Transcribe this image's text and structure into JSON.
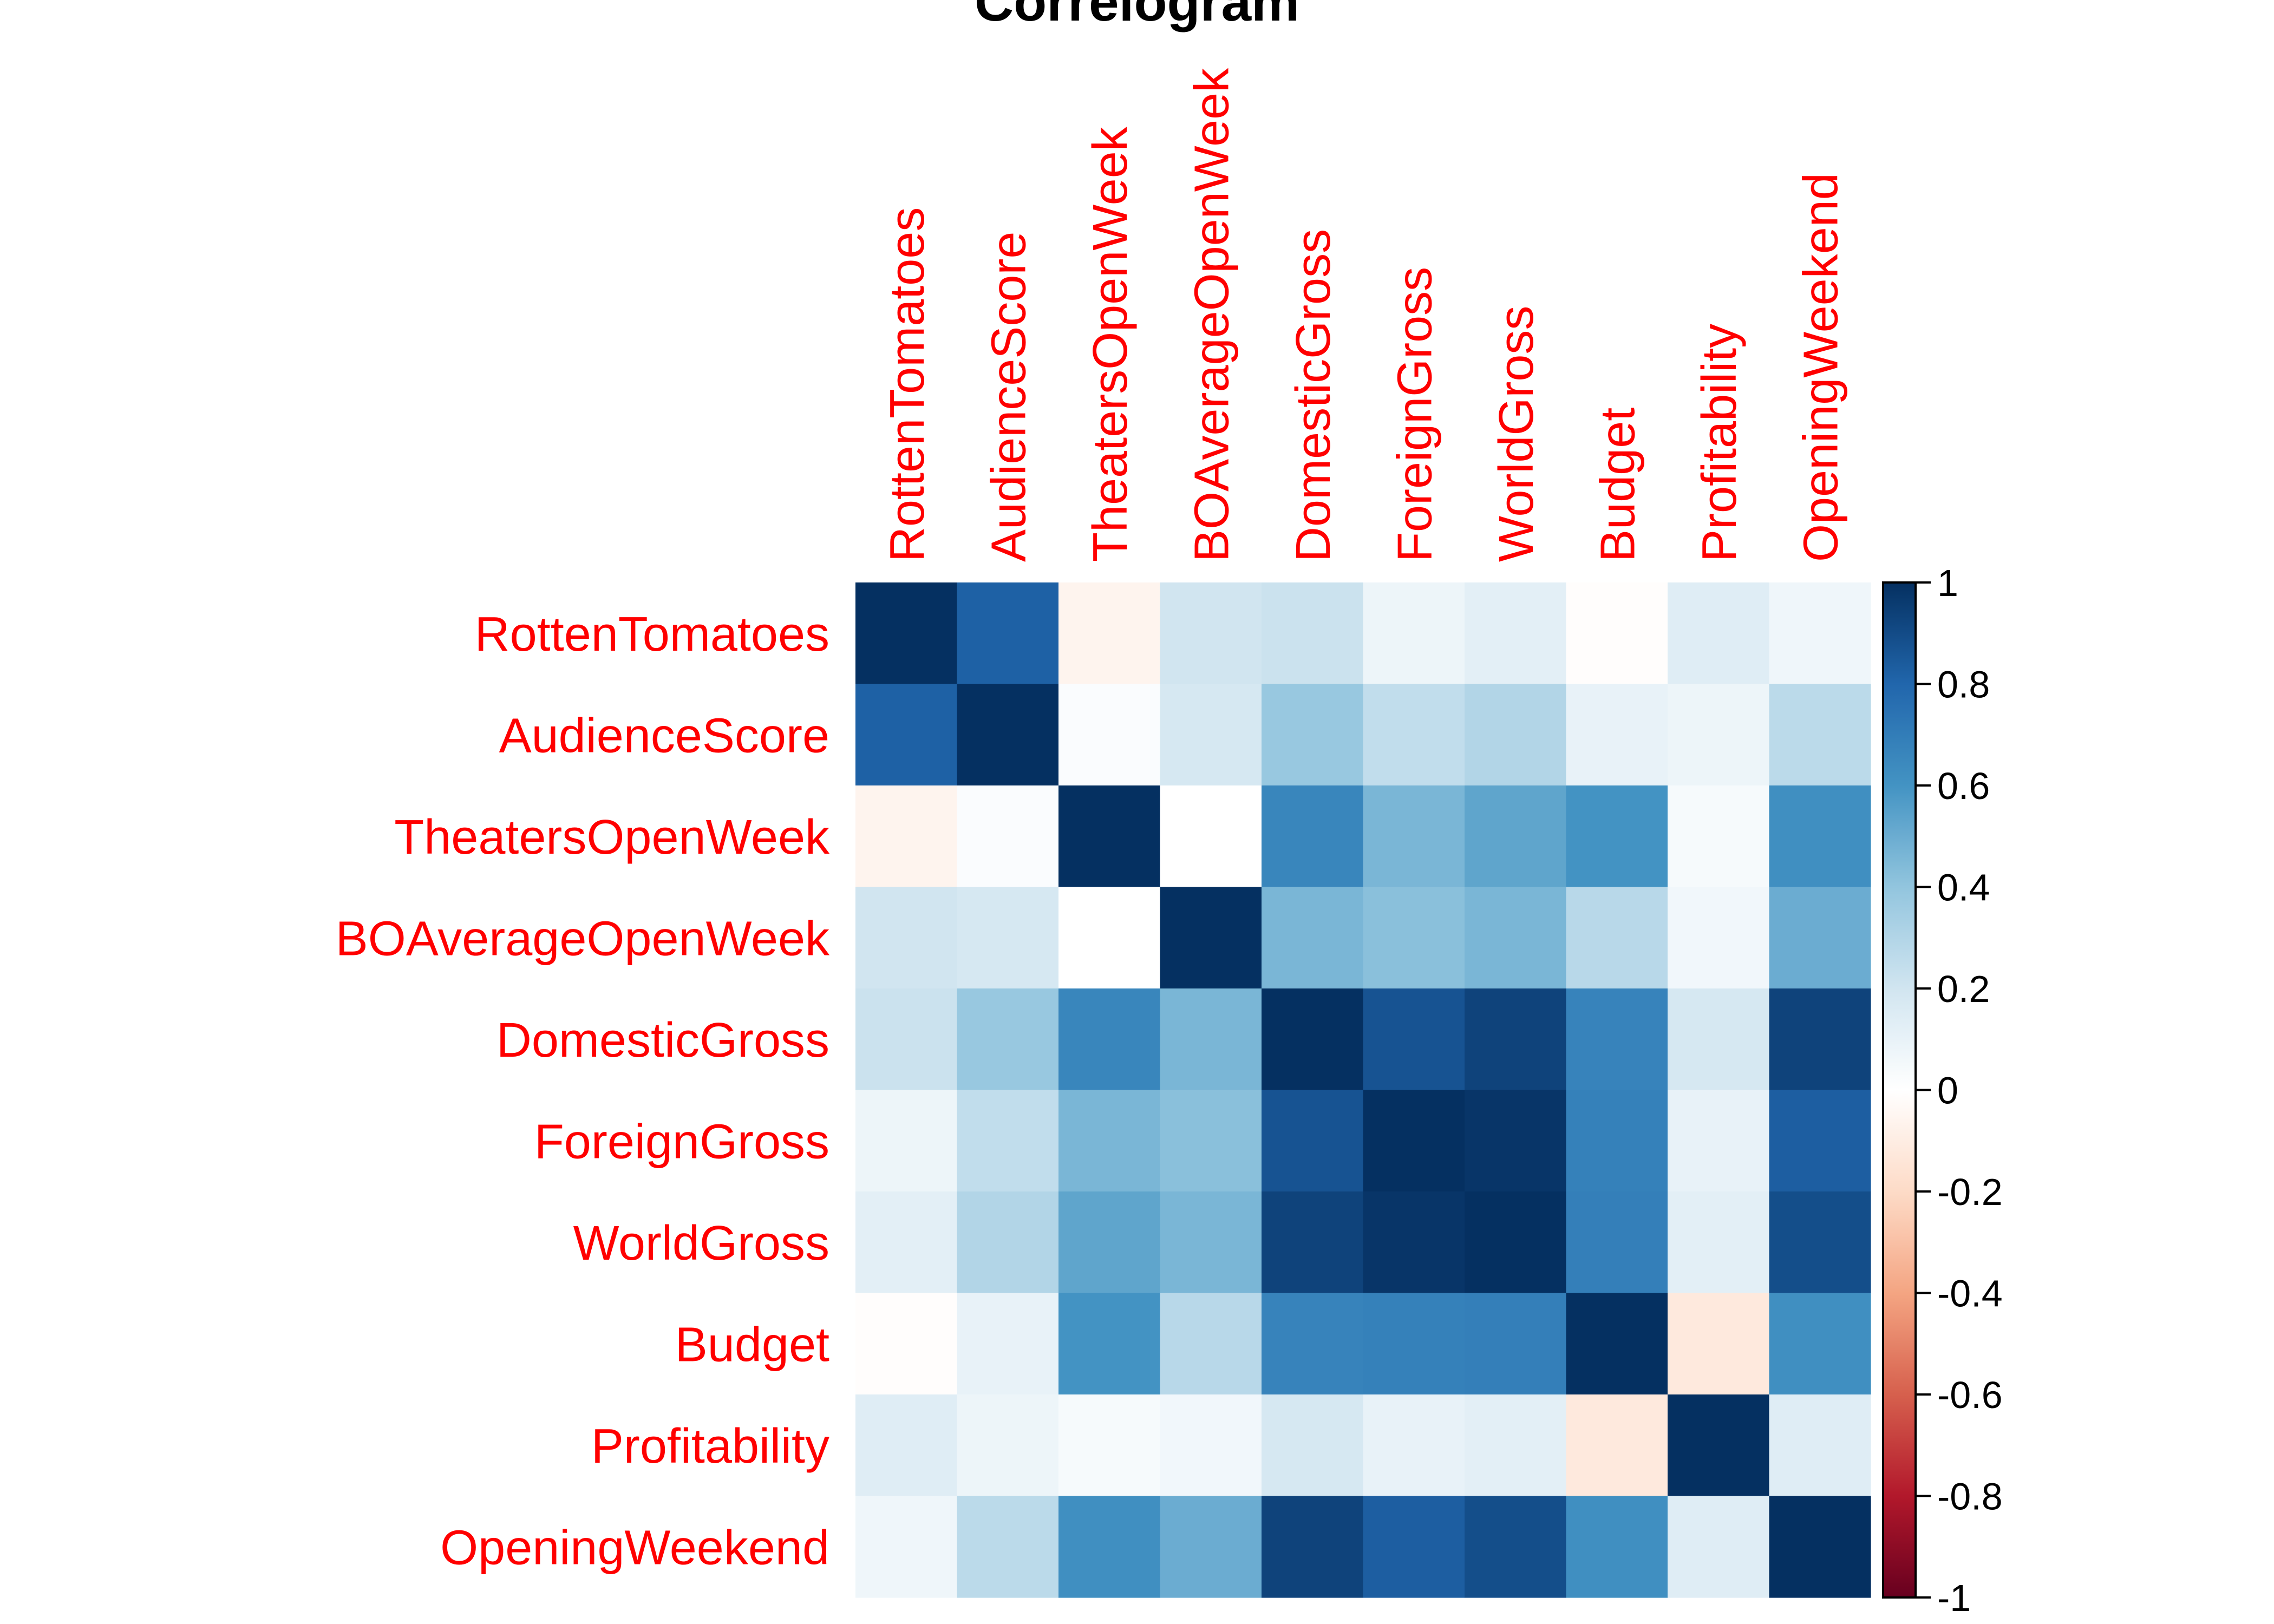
{
  "chart_data": {
    "type": "heatmap",
    "title": "Correlogram",
    "variables": [
      "RottenTomatoes",
      "AudienceScore",
      "TheatersOpenWeek",
      "BOAverageOpenWeek",
      "DomesticGross",
      "ForeignGross",
      "WorldGross",
      "Budget",
      "Profitability",
      "OpeningWeekend"
    ],
    "matrix": [
      [
        1.0,
        0.82,
        -0.06,
        0.2,
        0.22,
        0.08,
        0.12,
        -0.01,
        0.14,
        0.07
      ],
      [
        0.82,
        1.0,
        0.02,
        0.18,
        0.38,
        0.25,
        0.3,
        0.1,
        0.08,
        0.27
      ],
      [
        -0.06,
        0.02,
        1.0,
        0.0,
        0.66,
        0.46,
        0.53,
        0.6,
        0.04,
        0.62
      ],
      [
        0.2,
        0.18,
        0.0,
        1.0,
        0.46,
        0.42,
        0.46,
        0.28,
        0.06,
        0.5
      ],
      [
        0.22,
        0.38,
        0.66,
        0.46,
        1.0,
        0.87,
        0.93,
        0.67,
        0.18,
        0.93
      ],
      [
        0.08,
        0.25,
        0.46,
        0.42,
        0.87,
        1.0,
        0.98,
        0.68,
        0.1,
        0.83
      ],
      [
        0.12,
        0.3,
        0.53,
        0.46,
        0.93,
        0.98,
        1.0,
        0.69,
        0.12,
        0.89
      ],
      [
        -0.01,
        0.1,
        0.6,
        0.28,
        0.67,
        0.68,
        0.69,
        1.0,
        -0.12,
        0.62
      ],
      [
        0.14,
        0.08,
        0.04,
        0.06,
        0.18,
        0.1,
        0.12,
        -0.12,
        1.0,
        0.14
      ],
      [
        0.07,
        0.27,
        0.62,
        0.5,
        0.93,
        0.83,
        0.89,
        0.62,
        0.14,
        1.0
      ]
    ],
    "colorbar": {
      "range": [
        -1,
        1
      ],
      "ticks": [
        1,
        0.8,
        0.6,
        0.4,
        0.2,
        0,
        -0.2,
        -0.4,
        -0.6,
        -0.8,
        -1
      ],
      "tick_labels": [
        "1",
        "0.8",
        "0.6",
        "0.4",
        "0.2",
        "0",
        "-0.2",
        "-0.4",
        "-0.6",
        "-0.8",
        "-1"
      ],
      "position": "right"
    },
    "colors": {
      "negative_stops": [
        "#67001F",
        "#B2182B",
        "#D6604D",
        "#F4A582",
        "#FDDBC7",
        "#FFFFFF"
      ],
      "positive_stops": [
        "#FFFFFF",
        "#D1E5F0",
        "#92C5DE",
        "#4393C3",
        "#2166AC",
        "#053061"
      ],
      "label_color": "#FF0000",
      "title_color": "#000000"
    },
    "legend": "right",
    "grid": false
  }
}
